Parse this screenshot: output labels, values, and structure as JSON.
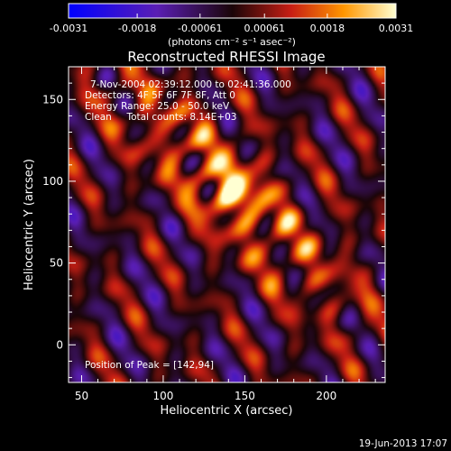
{
  "chart_data": {
    "type": "heatmap",
    "title": "Reconstructed RHESSI Image",
    "annotations": {
      "time_range": "7-Nov-2004 02:39:12.000 to 02:41:36.000",
      "detectors": "Detectors: 4F 5F 6F 7F 8F, Att 0",
      "energy": "Energy Range: 25.0 - 50.0 keV",
      "method": "Clean     Total counts: 8.14E+03",
      "peak": "Position of Peak = [142,94]"
    },
    "xlabel": "Heliocentric X (arcsec)",
    "ylabel": "Heliocentric Y (arcsec)",
    "xlim": [
      42,
      236
    ],
    "ylim": [
      -23,
      170
    ],
    "xticks": [
      50,
      100,
      150,
      200
    ],
    "yticks": [
      0,
      50,
      100,
      150
    ],
    "peak": [
      142,
      94
    ],
    "colorbar": {
      "label": "(photons cm⁻² s⁻¹ asec⁻²)",
      "min": -0.0031,
      "max": 0.0031,
      "tick_labels": [
        "-0.0031",
        "-0.0018",
        "-0.00061",
        "0.00061",
        "0.0018",
        "0.0031"
      ]
    },
    "footer_date": "19-Jun-2013 17:07"
  }
}
